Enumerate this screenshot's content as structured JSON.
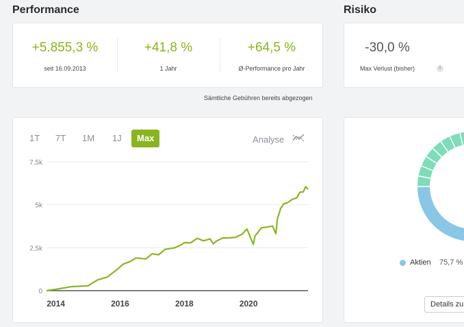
{
  "performance": {
    "title": "Performance",
    "kpis": [
      {
        "value": "+5.855,3 %",
        "label": "seit 16.09.2013"
      },
      {
        "value": "+41,8 %",
        "label": "1 Jahr"
      },
      {
        "value": "+64,5 %",
        "label": "Ø-Performance pro Jahr"
      }
    ],
    "fee_note": "Sämtliche Gebühren bereits abgezogen"
  },
  "risk": {
    "title": "Risiko",
    "value": "-30,0 %",
    "label": "Max Verlust (bisher)",
    "info_icon": "i"
  },
  "chart_panel": {
    "tabs": [
      "1T",
      "7T",
      "1M",
      "1J",
      "Max"
    ],
    "active_tab": "Max",
    "analyse_label": "Analyse",
    "analyse_icon": "trend-lines-icon"
  },
  "allocation": {
    "legend_label": "Aktien",
    "legend_value": "75,7 %",
    "legend_color": "#8ac7e6",
    "ring_colors": {
      "primary": "#7fdcb8",
      "secondary": "#8ac7e6"
    },
    "details_button": "Details zu"
  },
  "colors": {
    "accent": "#86b817",
    "line": "#8ab520"
  },
  "chart_data": {
    "type": "line",
    "title": "",
    "xlabel": "",
    "ylabel": "",
    "x_ticks": [
      "2014",
      "2016",
      "2018",
      "2020"
    ],
    "y_ticks": [
      "0",
      "2,5k",
      "5k",
      "7,5k"
    ],
    "xlim": [
      2013.71,
      2021.85
    ],
    "ylim": [
      0,
      7500
    ],
    "grid": true,
    "series": [
      {
        "x": [
          2013.71,
          2014.0,
          2014.5,
          2015.0,
          2015.3,
          2015.6,
          2015.9,
          2016.1,
          2016.3,
          2016.5,
          2016.8,
          2017.0,
          2017.2,
          2017.4,
          2017.7,
          2017.9,
          2018.0,
          2018.2,
          2018.4,
          2018.6,
          2018.8,
          2018.9,
          2019.0,
          2019.2,
          2019.4,
          2019.6,
          2019.8,
          2019.95,
          2020.15,
          2020.2,
          2020.3,
          2020.4,
          2020.6,
          2020.75,
          2020.85,
          2020.9,
          2021.0,
          2021.1,
          2021.2,
          2021.35,
          2021.5,
          2021.6,
          2021.7,
          2021.78,
          2021.85
        ],
        "values": [
          0,
          100,
          200,
          330,
          580,
          830,
          1200,
          1550,
          1700,
          1870,
          1890,
          2100,
          2130,
          2380,
          2500,
          2680,
          2760,
          2830,
          3000,
          2940,
          2990,
          2730,
          2900,
          3040,
          3110,
          3060,
          3330,
          3560,
          2700,
          3200,
          3380,
          3700,
          3660,
          3800,
          3280,
          4200,
          4800,
          5030,
          5150,
          5250,
          5450,
          5700,
          5760,
          6060,
          5900
        ]
      }
    ]
  }
}
